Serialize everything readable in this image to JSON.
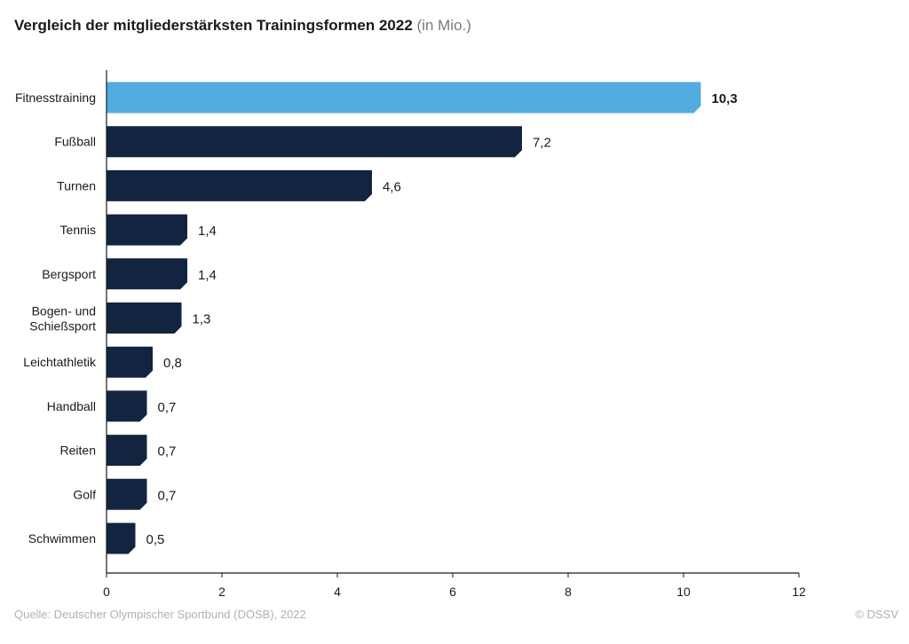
{
  "header": {
    "title": "Vergleich der mitgliederstärksten Trainingsformen 2022",
    "subtitle": "(in Mio.)"
  },
  "footer": {
    "source": "Quelle: Deutscher Olympischer Sportbund (DOSB), 2022",
    "copyright": "© DSSV"
  },
  "colors": {
    "highlight": "#52acdf",
    "bar": "#132440",
    "axis": "#1a1a1a",
    "text": "#1a1a1a"
  },
  "chart_data": {
    "type": "bar",
    "orientation": "horizontal",
    "categories": [
      "Fitnesstraining",
      "Fußball",
      "Turnen",
      "Tennis",
      "Bergsport",
      "Bogen- und Schießsport",
      "Leichtathletik",
      "Handball",
      "Reiten",
      "Golf",
      "Schwimmen"
    ],
    "values": [
      10.3,
      7.2,
      4.6,
      1.4,
      1.4,
      1.3,
      0.8,
      0.7,
      0.7,
      0.7,
      0.5
    ],
    "value_labels": [
      "10,3",
      "7,2",
      "4,6",
      "1,4",
      "1,4",
      "1,3",
      "0,8",
      "0,7",
      "0,7",
      "0,7",
      "0,5"
    ],
    "highlighted_index": 0,
    "xlim": [
      0,
      12
    ],
    "x_ticks": [
      0,
      2,
      4,
      6,
      8,
      10,
      12
    ],
    "grid": false,
    "legend": "none"
  }
}
